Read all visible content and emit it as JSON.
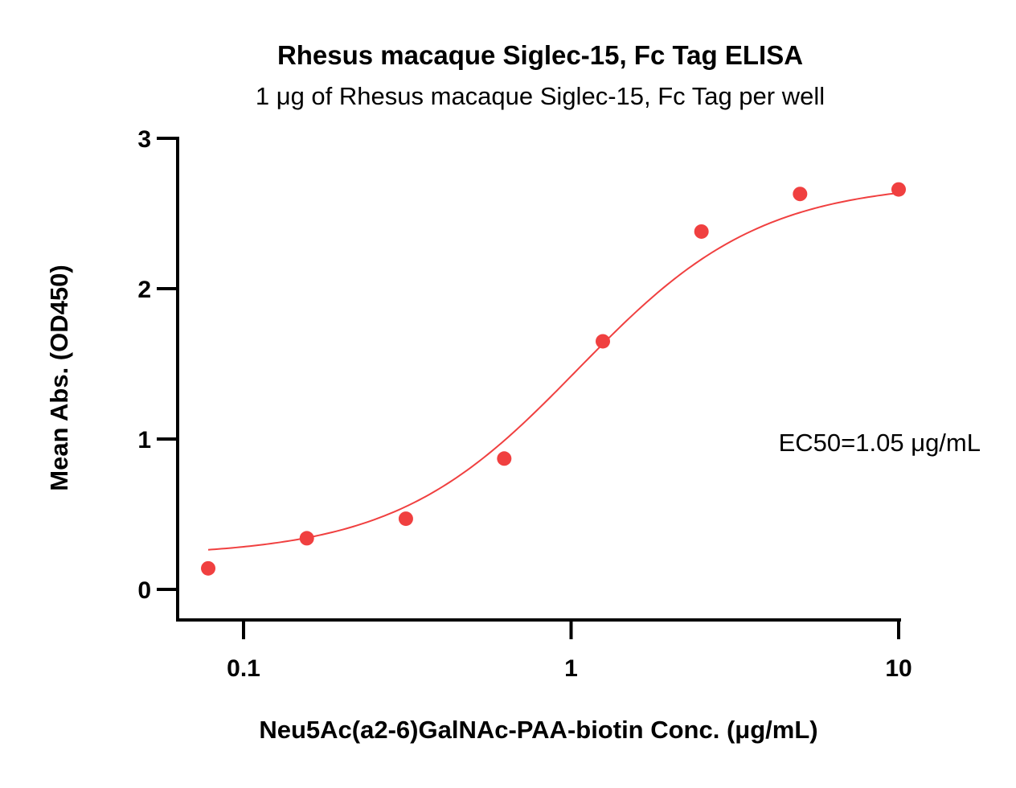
{
  "chart_data": {
    "type": "scatter",
    "title": "Rhesus macaque Siglec-15, Fc Tag ELISA",
    "subtitle": "1 μg of Rhesus macaque Siglec-15, Fc Tag per well",
    "xlabel": "Neu5Ac(a2-6)GalNAc-PAA-biotin Conc. (μg/mL)",
    "ylabel": "Mean Abs. (OD450)",
    "x_scale": "log",
    "xlim": [
      0.078,
      10
    ],
    "ylim": [
      0,
      3
    ],
    "x_ticks": [
      {
        "value": 0.1,
        "label": "0.1"
      },
      {
        "value": 1,
        "label": "1"
      },
      {
        "value": 10,
        "label": "10"
      }
    ],
    "y_ticks": [
      {
        "value": 0,
        "label": "0"
      },
      {
        "value": 1,
        "label": "1"
      },
      {
        "value": 2,
        "label": "2"
      },
      {
        "value": 3,
        "label": "3"
      }
    ],
    "series": [
      {
        "color": "#f04040",
        "x": [
          0.078,
          0.156,
          0.313,
          0.625,
          1.25,
          2.5,
          5,
          10
        ],
        "y": [
          0.14,
          0.34,
          0.47,
          0.87,
          1.65,
          2.38,
          2.63,
          2.66
        ],
        "fit": {
          "model": "4PL",
          "bottom": 0.22,
          "top": 2.71,
          "ec50": 1.05,
          "hill": 1.55
        }
      }
    ],
    "annotation": "EC50=1.05 μg/mL",
    "grid": false,
    "legend": "none"
  }
}
